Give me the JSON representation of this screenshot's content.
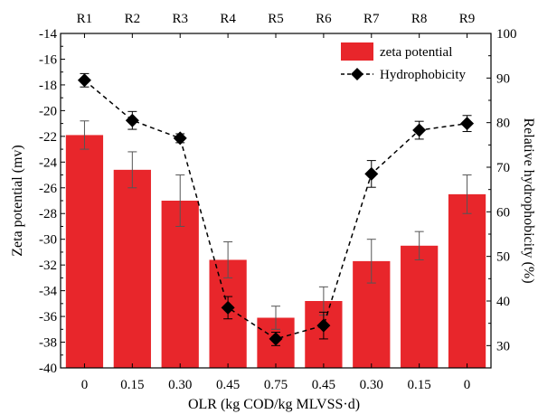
{
  "chart_data": {
    "type": "bar+line",
    "categories": [
      "0",
      "0.15",
      "0.30",
      "0.45",
      "0.75",
      "0.45",
      "0.30",
      "0.15",
      "0"
    ],
    "top_labels": [
      "R1",
      "R2",
      "R3",
      "R4",
      "R5",
      "R6",
      "R7",
      "R8",
      "R9"
    ],
    "xlabel": "OLR (kg COD/kg MLVSS·d)",
    "ylabel_left": "Zeta potential (mv)",
    "ylabel_right": "Relative hydrophobicity (%)",
    "ylim_left": [
      -40,
      -14
    ],
    "yticks_left": [
      -14,
      -16,
      -18,
      -20,
      -22,
      -24,
      -26,
      -28,
      -30,
      -32,
      -34,
      -36,
      -38,
      -40
    ],
    "ylim_right": [
      25,
      100
    ],
    "yticks_right": [
      30,
      40,
      50,
      60,
      70,
      80,
      90,
      100
    ],
    "legend_position": "top-right",
    "series": [
      {
        "name": "zeta potential",
        "kind": "bar",
        "axis": "left",
        "color": "#e8262b",
        "values": [
          -21.9,
          -24.6,
          -27.0,
          -31.6,
          -36.1,
          -34.8,
          -31.7,
          -30.5,
          -26.5
        ],
        "errors": [
          1.1,
          1.4,
          2.0,
          1.4,
          0.9,
          1.1,
          1.7,
          1.1,
          1.5
        ]
      },
      {
        "name": "Hydrophobicity",
        "kind": "line",
        "axis": "right",
        "color": "#000000",
        "marker": "diamond",
        "style": "dashed",
        "values": [
          89.5,
          80.5,
          76.5,
          38.5,
          31.5,
          34.5,
          68.5,
          78.3,
          79.8
        ],
        "errors": [
          1.5,
          2.0,
          1.0,
          2.5,
          1.5,
          3.0,
          3.0,
          2.0,
          1.8
        ]
      }
    ]
  }
}
